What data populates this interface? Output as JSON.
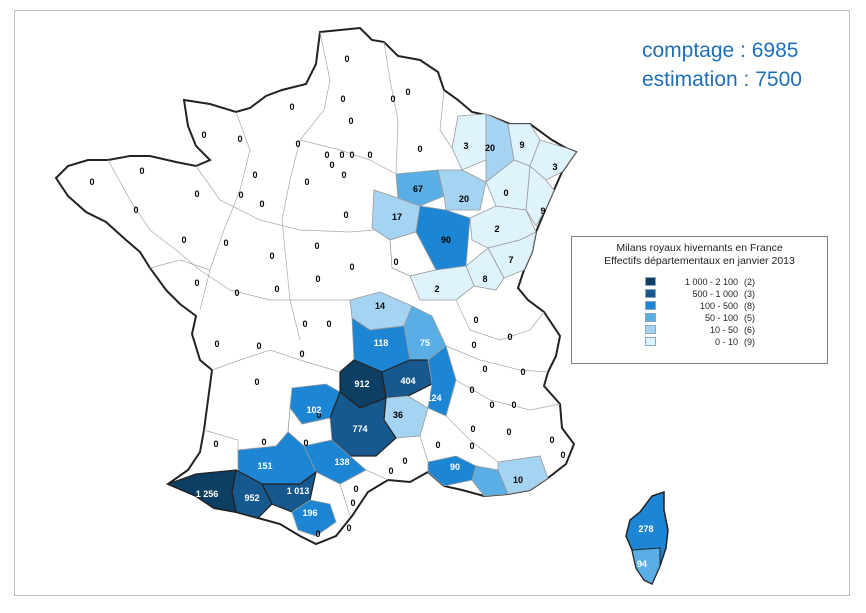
{
  "header": {
    "comptage": "comptage : 6985",
    "estimation": "estimation : 7500"
  },
  "legend": {
    "title_line1": "Milans royaux hivernants en France",
    "title_line2": "Effectifs départementaux en janvier 2013",
    "classes": [
      {
        "range": "1 000 - 2 100",
        "count": "(2)",
        "color": "#0d3e63"
      },
      {
        "range": "500 - 1 000",
        "count": "(3)",
        "color": "#17598f"
      },
      {
        "range": "100 - 500",
        "count": "(8)",
        "color": "#1d86d4"
      },
      {
        "range": "50 - 100",
        "count": "(5)",
        "color": "#5aaee6"
      },
      {
        "range": "10 - 50",
        "count": "(6)",
        "color": "#a5d3f2"
      },
      {
        "range": "0 - 10",
        "count": "(9)",
        "color": "#dff3fd"
      }
    ]
  },
  "map_colors": {
    "zero_fill": "#ffffff",
    "border": "#222222",
    "inner_border": "#9a9a9a"
  },
  "map_values": {
    "white_zero_labels": [
      "0"
    ],
    "highlight_labels": [
      "3",
      "20",
      "9",
      "3",
      "9",
      "67",
      "20",
      "17",
      "90",
      "2",
      "7",
      "0",
      "2",
      "8",
      "14",
      "118",
      "75",
      "912",
      "404",
      "124",
      "102",
      "36",
      "774",
      "0",
      "138",
      "151",
      "1 013",
      "952",
      "1 256",
      "196",
      "90",
      "10",
      "278",
      "94"
    ]
  }
}
